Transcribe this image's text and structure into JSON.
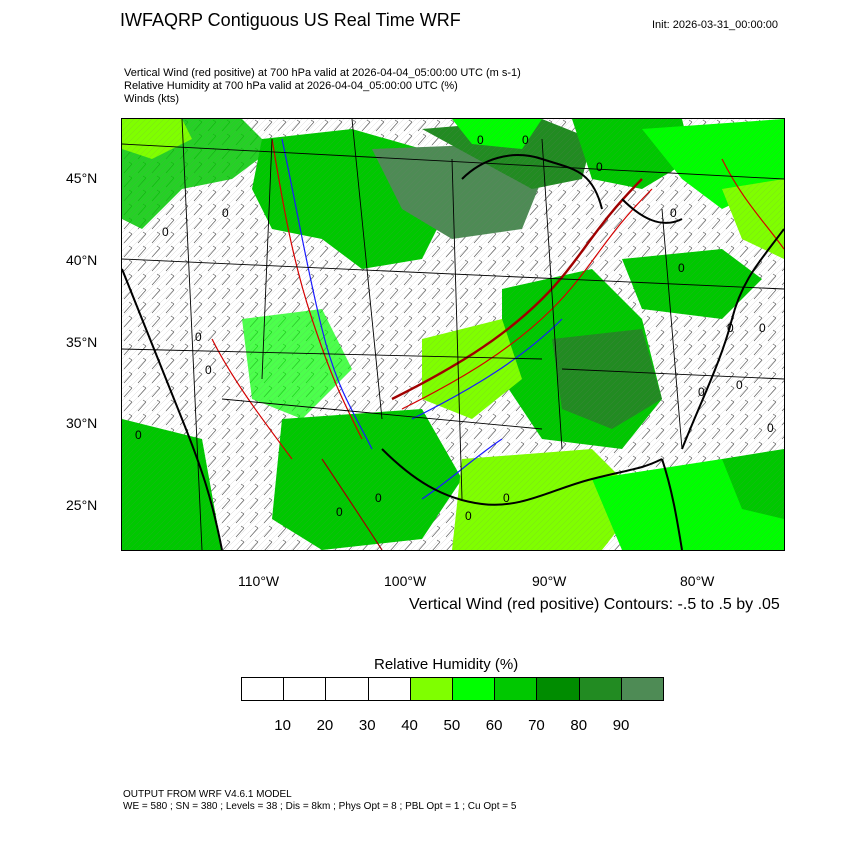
{
  "header": {
    "title": "IWFAQRP Contiguous US Real Time WRF",
    "init": "Init: 2026-03-31_00:00:00"
  },
  "subtitles": {
    "line1": "Vertical Wind (red positive) at 700 hPa valid at 2026-04-04_05:00:00 UTC   (m s-1)",
    "line2": "Relative Humidity at 700 hPa valid at 2026-04-04_05:00:00 UTC   (%)",
    "line3": "Winds   (kts)"
  },
  "map": {
    "lat_labels": [
      "45°N",
      "40°N",
      "35°N",
      "30°N",
      "25°N"
    ],
    "lon_labels": [
      "110°W",
      "100°W",
      "90°W",
      "80°W"
    ],
    "contour_zero_label": "0",
    "contour_note": "Vertical Wind (red positive) Contours: -.5 to .5 by .05"
  },
  "colorbar": {
    "title": "Relative Humidity  (%)",
    "colors": [
      "#ffffff",
      "#ffffff",
      "#ffffff",
      "#ffffff",
      "#7fff00",
      "#00ff00",
      "#00c800",
      "#008c00",
      "#228b22",
      "#4e8b55"
    ],
    "labels": [
      "10",
      "20",
      "30",
      "40",
      "50",
      "60",
      "70",
      "80",
      "90"
    ]
  },
  "footer": {
    "line1": "OUTPUT FROM WRF V4.6.1 MODEL",
    "line2": "WE = 580 ; SN = 380 ; Levels = 38 ; Dis = 8km ; Phys Opt = 8 ; PBL Opt = 1 ; Cu Opt = 5"
  }
}
